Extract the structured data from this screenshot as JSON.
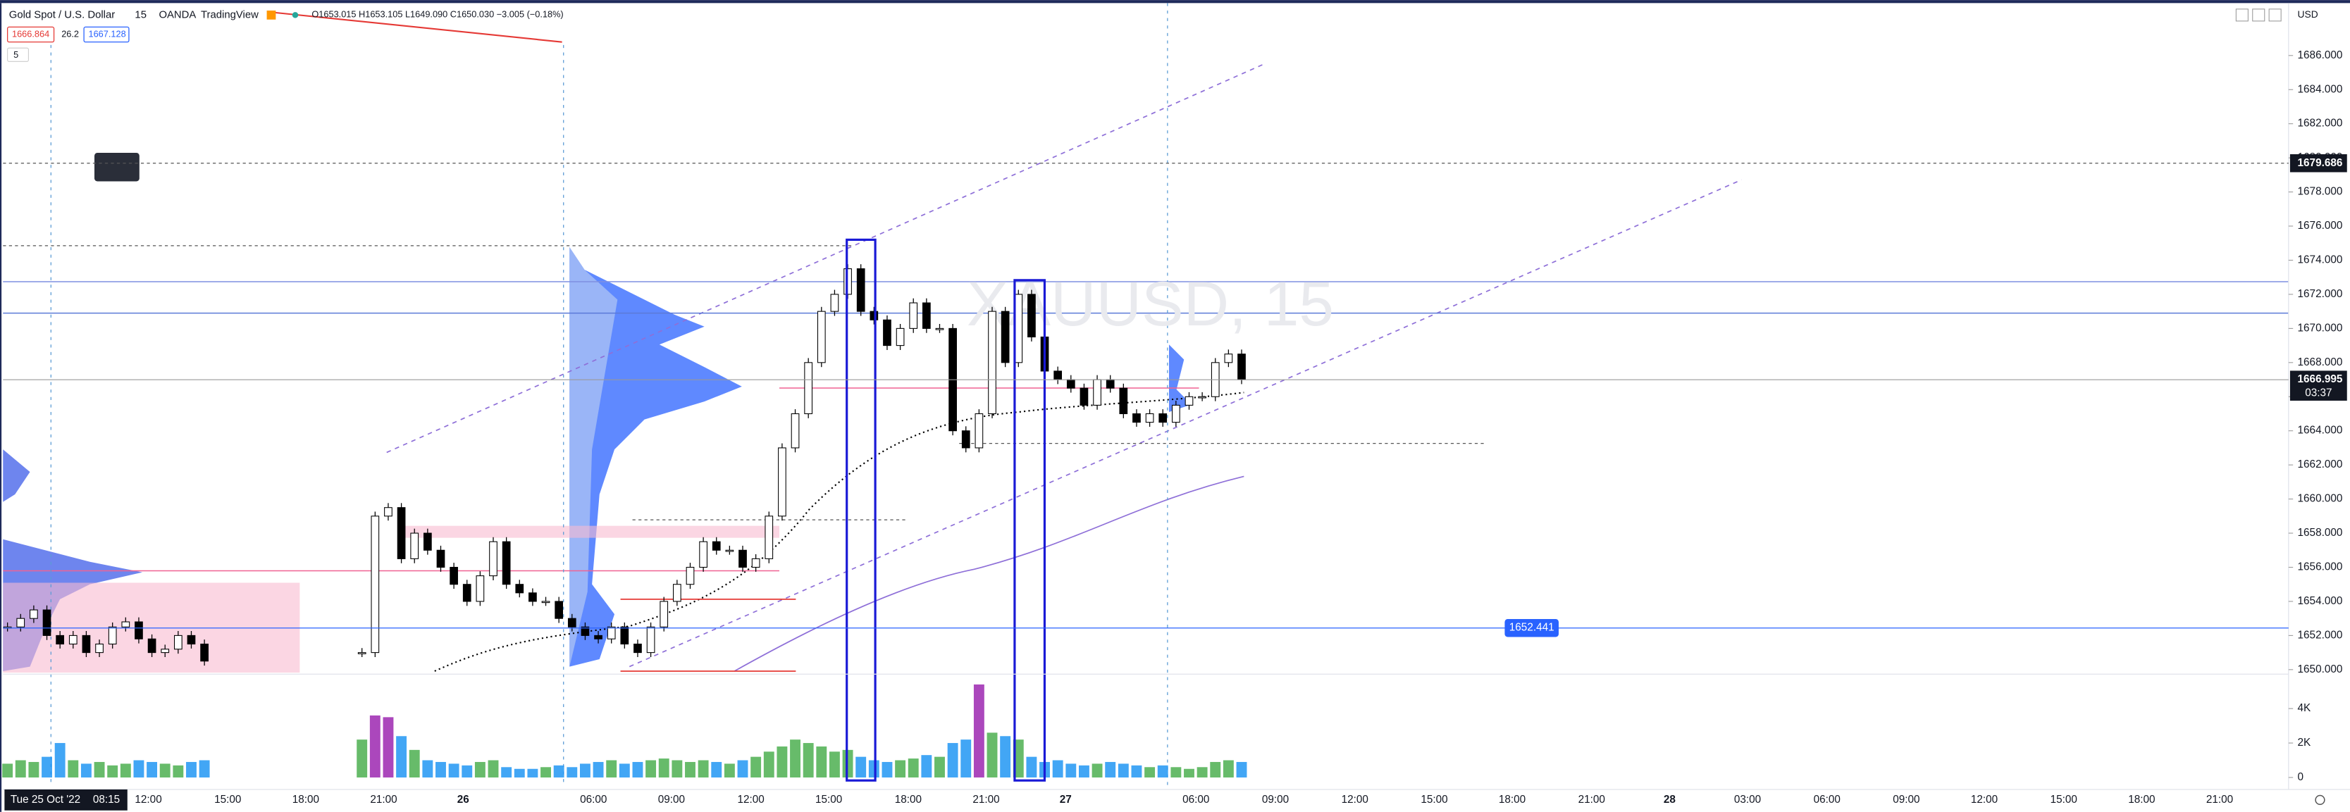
{
  "header": {
    "symbol": "Gold Spot / U.S. Dollar",
    "interval": "15",
    "broker": "OANDA",
    "source": "TradingView",
    "ohlc": "O1653.015 H1653.105 L1649.090 C1650.030 −3.005 (−0.18%)",
    "bid": "1666.864",
    "spread": "26.2",
    "ask": "1667.128",
    "indicator_count": "5",
    "currency": "USD"
  },
  "watermark": "XAUUSD, 15",
  "price_axis": {
    "ylim": [
      1650,
      1686
    ],
    "ticks": [
      {
        "value": 1650,
        "label": "1650.000"
      },
      {
        "value": 1652,
        "label": "1652.000"
      },
      {
        "value": 1654,
        "label": "1654.000"
      },
      {
        "value": 1656,
        "label": "1656.000"
      },
      {
        "value": 1658,
        "label": "1658.000"
      },
      {
        "value": 1660,
        "label": "1660.000"
      },
      {
        "value": 1662,
        "label": "1662.000"
      },
      {
        "value": 1664,
        "label": "1664.000"
      },
      {
        "value": 1666,
        "label": "1666.000"
      },
      {
        "value": 1668,
        "label": "1668.000"
      },
      {
        "value": 1670,
        "label": "1670.000"
      },
      {
        "value": 1672,
        "label": "1672.000"
      },
      {
        "value": 1674,
        "label": "1674.000"
      },
      {
        "value": 1676,
        "label": "1676.000"
      },
      {
        "value": 1678,
        "label": "1678.000"
      },
      {
        "value": 1680,
        "label": "1680.000"
      },
      {
        "value": 1682,
        "label": "1682.000"
      },
      {
        "value": 1684,
        "label": "1684.000"
      },
      {
        "value": 1686,
        "label": "1686.000"
      }
    ]
  },
  "levels": {
    "alert": {
      "value": 1679.686,
      "label": "1679.686"
    },
    "last": {
      "value": 1666.995,
      "label": "1666.995",
      "countdown": "03:37"
    },
    "line": {
      "value": 1652.441,
      "label": "1652.441"
    }
  },
  "volume_axis": {
    "ticks": [
      {
        "value": 0,
        "label": "0"
      },
      {
        "value": 2,
        "label": "2K"
      },
      {
        "value": 4,
        "label": "4K"
      }
    ]
  },
  "time_axis": {
    "cursor_date": "Tue 25 Oct '22",
    "cursor_time": "08:15",
    "labels": [
      "12:00",
      "15:00",
      "18:00",
      "21:00",
      "26",
      "06:00",
      "09:00",
      "12:00",
      "15:00",
      "18:00",
      "21:00",
      "27",
      "06:00",
      "09:00",
      "12:00",
      "15:00",
      "18:00",
      "21:00",
      "28",
      "03:00",
      "06:00",
      "09:00",
      "12:00",
      "15:00",
      "18:00",
      "21:00"
    ]
  },
  "candles": [
    1652.5,
    1653,
    1653.5,
    1652,
    1651.5,
    1652,
    1651,
    1651.5,
    1652.5,
    1652.8,
    1651.8,
    1651,
    1651.2,
    1652,
    1651.5,
    1650.5,
    null,
    null,
    null,
    null,
    null,
    null,
    null,
    null,
    null,
    null,
    null,
    1651,
    1659,
    1659.5,
    1656.5,
    1658,
    1657,
    1656,
    1655,
    1654,
    1655.5,
    1657.5,
    1655,
    1654.5,
    1654,
    1654,
    1653,
    1652.5,
    1652,
    1651.8,
    1652.5,
    1651.5,
    1651,
    1652.5,
    1654,
    1655,
    1656,
    1657.5,
    1657,
    1657,
    1656,
    1656.5,
    1659,
    1663,
    1665,
    1668,
    1671,
    1672,
    1673.5,
    1671,
    1670.5,
    1669,
    1670,
    1671.5,
    1670,
    1670,
    1664,
    1663,
    1665,
    1671,
    1668,
    1672,
    1669.5,
    1667.5,
    1667,
    1666.5,
    1665.5,
    1667,
    1666.5,
    1665,
    1664.5,
    1665,
    1664.5,
    1665.5,
    1666,
    1666,
    1668,
    1668.5,
    1667
  ],
  "volume": [
    0.8,
    1.0,
    0.9,
    1.2,
    2.0,
    1.0,
    0.8,
    0.9,
    0.7,
    0.8,
    1.0,
    0.9,
    0.8,
    0.7,
    0.9,
    1.0,
    null,
    null,
    null,
    null,
    null,
    null,
    null,
    null,
    null,
    null,
    null,
    2.2,
    3.6,
    3.5,
    2.4,
    1.6,
    1.0,
    0.9,
    0.8,
    0.7,
    0.9,
    1.0,
    0.6,
    0.5,
    0.5,
    0.6,
    0.7,
    0.6,
    0.8,
    0.9,
    1.0,
    0.8,
    0.9,
    1.0,
    1.1,
    1.0,
    0.9,
    1.0,
    0.9,
    0.8,
    1.0,
    1.2,
    1.5,
    1.8,
    2.2,
    2.0,
    1.8,
    1.5,
    1.6,
    1.2,
    1.0,
    0.9,
    1.0,
    1.1,
    1.3,
    1.2,
    2.0,
    2.2,
    5.4,
    2.6,
    2.4,
    2.2,
    1.2,
    0.9,
    1.0,
    0.8,
    0.7,
    0.8,
    0.9,
    0.8,
    0.7,
    0.6,
    0.7,
    0.6,
    0.5,
    0.6,
    0.9,
    1.0,
    0.9
  ]
}
